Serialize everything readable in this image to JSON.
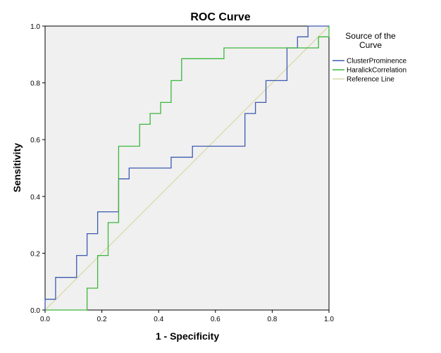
{
  "chart_data": {
    "type": "line",
    "title": "ROC Curve",
    "xlabel": "1 - Specificity",
    "ylabel": "Sensitivity",
    "xlim": [
      0.0,
      1.0
    ],
    "ylim": [
      0.0,
      1.0
    ],
    "xticks": [
      "0.0",
      "0.2",
      "0.4",
      "0.6",
      "0.8",
      "1.0"
    ],
    "yticks": [
      "0.0",
      "0.2",
      "0.4",
      "0.6",
      "0.8",
      "1.0"
    ],
    "background": "#f0f0f0",
    "grid": false,
    "legend": {
      "title_lines": [
        "Source of the",
        "Curve"
      ],
      "placement": "right"
    },
    "series": [
      {
        "name": "ClusterProminence",
        "color": "#3c5bb0",
        "points": [
          [
            0,
            0
          ],
          [
            0,
            0.038
          ],
          [
            0.037,
            0.038
          ],
          [
            0.037,
            0.115
          ],
          [
            0.111,
            0.115
          ],
          [
            0.111,
            0.192
          ],
          [
            0.148,
            0.192
          ],
          [
            0.148,
            0.269
          ],
          [
            0.185,
            0.269
          ],
          [
            0.185,
            0.346
          ],
          [
            0.259,
            0.346
          ],
          [
            0.259,
            0.462
          ],
          [
            0.296,
            0.462
          ],
          [
            0.296,
            0.5
          ],
          [
            0.444,
            0.5
          ],
          [
            0.444,
            0.538
          ],
          [
            0.519,
            0.538
          ],
          [
            0.519,
            0.577
          ],
          [
            0.704,
            0.577
          ],
          [
            0.704,
            0.692
          ],
          [
            0.741,
            0.692
          ],
          [
            0.741,
            0.731
          ],
          [
            0.778,
            0.731
          ],
          [
            0.778,
            0.808
          ],
          [
            0.852,
            0.808
          ],
          [
            0.852,
            0.923
          ],
          [
            0.889,
            0.923
          ],
          [
            0.889,
            0.962
          ],
          [
            0.926,
            0.962
          ],
          [
            0.926,
            1.0
          ],
          [
            1.0,
            1.0
          ]
        ]
      },
      {
        "name": "HaralickCorrelation",
        "color": "#3cb63c",
        "points": [
          [
            0,
            0
          ],
          [
            0.148,
            0
          ],
          [
            0.148,
            0.077
          ],
          [
            0.185,
            0.077
          ],
          [
            0.185,
            0.192
          ],
          [
            0.222,
            0.192
          ],
          [
            0.222,
            0.308
          ],
          [
            0.259,
            0.308
          ],
          [
            0.259,
            0.577
          ],
          [
            0.333,
            0.577
          ],
          [
            0.333,
            0.654
          ],
          [
            0.37,
            0.654
          ],
          [
            0.37,
            0.692
          ],
          [
            0.407,
            0.692
          ],
          [
            0.407,
            0.731
          ],
          [
            0.444,
            0.731
          ],
          [
            0.444,
            0.808
          ],
          [
            0.481,
            0.808
          ],
          [
            0.481,
            0.885
          ],
          [
            0.63,
            0.885
          ],
          [
            0.63,
            0.923
          ],
          [
            0.963,
            0.923
          ],
          [
            0.963,
            0.962
          ],
          [
            1.0,
            0.962
          ],
          [
            1.0,
            1.0
          ]
        ]
      },
      {
        "name": "Reference Line",
        "color": "#d9d9a8",
        "points": [
          [
            0,
            0
          ],
          [
            1,
            1
          ]
        ]
      }
    ]
  }
}
